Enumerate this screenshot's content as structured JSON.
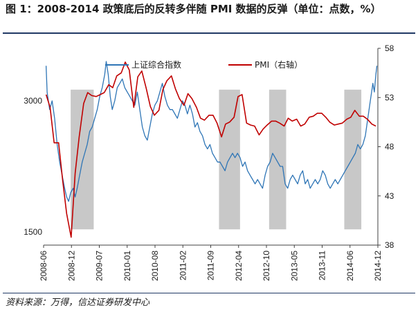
{
  "header": {
    "title": "图 1：2008-2014 政策底后的反转多伴随 PMI 数据的反弹（单位：点数，%）"
  },
  "footer": {
    "source": "资料来源：万得，信达证券研发中心"
  },
  "chart_data": {
    "type": "line",
    "title": "图 1：2008-2014 政策底后的反转多伴随 PMI 数据的反弹（单位：点数，%）",
    "x_labels": [
      "2008-06",
      "2008-12",
      "2009-07",
      "2010-01",
      "2010-08",
      "2011-02",
      "2011-09",
      "2012-04",
      "2012-10",
      "2013-05",
      "2013-11",
      "2014-06",
      "2014-12"
    ],
    "x_range": [
      2008.33,
      2015.0
    ],
    "left_axis": {
      "ticks": [
        3000,
        1500
      ],
      "range": [
        1350,
        3600
      ],
      "name": "上证综合指数"
    },
    "right_axis": {
      "ticks": [
        58,
        53,
        48,
        43,
        38
      ],
      "range": [
        38,
        58
      ],
      "name": "PMI（右轴）"
    },
    "shaded_periods": [
      {
        "start": 2008.87,
        "end": 2009.33
      },
      {
        "start": 2011.83,
        "end": 2012.25
      },
      {
        "start": 2012.83,
        "end": 2013.17
      },
      {
        "start": 2014.33,
        "end": 2014.67
      }
    ],
    "series": [
      {
        "name": "上证综合指数",
        "axis": "left",
        "color": "#2e75b6",
        "x": [
          2008.38,
          2008.4,
          2008.45,
          2008.5,
          2008.55,
          2008.6,
          2008.65,
          2008.7,
          2008.75,
          2008.79,
          2008.83,
          2008.87,
          2008.92,
          2008.96,
          2009.0,
          2009.05,
          2009.1,
          2009.15,
          2009.2,
          2009.25,
          2009.3,
          2009.35,
          2009.4,
          2009.45,
          2009.5,
          2009.55,
          2009.58,
          2009.62,
          2009.66,
          2009.7,
          2009.75,
          2009.8,
          2009.85,
          2009.9,
          2009.95,
          2010.0,
          2010.05,
          2010.1,
          2010.15,
          2010.2,
          2010.25,
          2010.3,
          2010.35,
          2010.4,
          2010.45,
          2010.5,
          2010.55,
          2010.6,
          2010.65,
          2010.7,
          2010.75,
          2010.8,
          2010.85,
          2010.9,
          2010.95,
          2011.0,
          2011.05,
          2011.1,
          2011.15,
          2011.2,
          2011.25,
          2011.3,
          2011.35,
          2011.4,
          2011.45,
          2011.5,
          2011.55,
          2011.6,
          2011.65,
          2011.7,
          2011.75,
          2011.8,
          2011.85,
          2011.9,
          2011.95,
          2012.0,
          2012.05,
          2012.1,
          2012.15,
          2012.2,
          2012.25,
          2012.3,
          2012.35,
          2012.4,
          2012.45,
          2012.5,
          2012.55,
          2012.6,
          2012.65,
          2012.7,
          2012.75,
          2012.8,
          2012.85,
          2012.9,
          2012.95,
          2013.0,
          2013.05,
          2013.1,
          2013.15,
          2013.2,
          2013.25,
          2013.3,
          2013.35,
          2013.4,
          2013.45,
          2013.5,
          2013.55,
          2013.6,
          2013.65,
          2013.7,
          2013.75,
          2013.8,
          2013.85,
          2013.9,
          2013.95,
          2014.0,
          2014.05,
          2014.1,
          2014.15,
          2014.2,
          2014.25,
          2014.3,
          2014.35,
          2014.4,
          2014.45,
          2014.5,
          2014.55,
          2014.6,
          2014.65,
          2014.7,
          2014.75,
          2014.8,
          2014.85,
          2014.9,
          2014.93,
          2014.96,
          2014.98
        ],
        "values": [
          3400,
          3100,
          2900,
          3000,
          2800,
          2500,
          2300,
          2150,
          2000,
          1900,
          1850,
          1950,
          2000,
          1900,
          2000,
          2150,
          2300,
          2400,
          2500,
          2650,
          2700,
          2800,
          2900,
          3050,
          3150,
          3300,
          3450,
          3300,
          3050,
          2900,
          3000,
          3150,
          3200,
          3250,
          3150,
          3100,
          3050,
          3000,
          2950,
          3100,
          2900,
          2700,
          2600,
          2550,
          2700,
          2850,
          2950,
          3000,
          3100,
          3200,
          3050,
          2950,
          2900,
          2900,
          2850,
          2800,
          2900,
          3000,
          2950,
          2850,
          2950,
          2850,
          2700,
          2750,
          2650,
          2600,
          2500,
          2450,
          2500,
          2400,
          2350,
          2300,
          2300,
          2250,
          2200,
          2300,
          2350,
          2400,
          2350,
          2400,
          2350,
          2250,
          2300,
          2200,
          2150,
          2100,
          2050,
          2100,
          2050,
          2000,
          2150,
          2250,
          2300,
          2400,
          2350,
          2300,
          2250,
          2250,
          2050,
          2000,
          2100,
          2150,
          2100,
          2050,
          2150,
          2200,
          2050,
          2100,
          2000,
          2050,
          2100,
          2050,
          2100,
          2200,
          2150,
          2050,
          2000,
          2050,
          2100,
          2050,
          2100,
          2150,
          2200,
          2250,
          2300,
          2350,
          2400,
          2500,
          2450,
          2500,
          2600,
          2800,
          3000,
          3200,
          3100,
          3300,
          3400
        ],
        "mark_names": {
          "line": "sh-index-line"
        }
      },
      {
        "name": "PMI（右轴）",
        "axis": "right",
        "color": "#c00000",
        "x": [
          2008.38,
          2008.46,
          2008.54,
          2008.63,
          2008.71,
          2008.79,
          2008.88,
          2008.96,
          2009.04,
          2009.13,
          2009.21,
          2009.29,
          2009.38,
          2009.46,
          2009.54,
          2009.63,
          2009.71,
          2009.79,
          2009.88,
          2009.96,
          2010.04,
          2010.13,
          2010.21,
          2010.29,
          2010.38,
          2010.46,
          2010.54,
          2010.63,
          2010.71,
          2010.79,
          2010.88,
          2010.96,
          2011.04,
          2011.13,
          2011.21,
          2011.29,
          2011.38,
          2011.46,
          2011.54,
          2011.63,
          2011.71,
          2011.79,
          2011.88,
          2011.96,
          2012.04,
          2012.13,
          2012.21,
          2012.29,
          2012.38,
          2012.46,
          2012.54,
          2012.63,
          2012.71,
          2012.79,
          2012.88,
          2012.96,
          2013.04,
          2013.13,
          2013.21,
          2013.29,
          2013.38,
          2013.46,
          2013.54,
          2013.63,
          2013.71,
          2013.79,
          2013.88,
          2013.96,
          2014.04,
          2014.13,
          2014.21,
          2014.29,
          2014.38,
          2014.46,
          2014.54,
          2014.63,
          2014.71,
          2014.79,
          2014.88,
          2014.96
        ],
        "values": [
          53.3,
          52.0,
          48.4,
          48.4,
          44.6,
          41.2,
          38.8,
          45.3,
          49.0,
          52.4,
          53.5,
          53.2,
          53.1,
          53.3,
          53.5,
          54.3,
          54.0,
          55.2,
          55.5,
          56.6,
          55.8,
          52.0,
          55.1,
          55.7,
          53.9,
          52.1,
          51.2,
          51.7,
          53.8,
          54.7,
          55.2,
          53.9,
          52.9,
          52.2,
          53.4,
          52.9,
          52.0,
          50.9,
          50.7,
          51.2,
          51.2,
          50.4,
          49.0,
          50.3,
          50.5,
          51.0,
          53.1,
          53.3,
          50.4,
          50.2,
          50.1,
          49.2,
          49.8,
          50.2,
          50.6,
          50.6,
          50.4,
          50.1,
          50.9,
          50.6,
          50.8,
          50.1,
          50.3,
          51.0,
          51.1,
          51.4,
          51.4,
          51.0,
          50.5,
          50.2,
          50.3,
          50.4,
          50.8,
          51.0,
          51.7,
          51.1,
          51.1,
          50.8,
          50.3,
          50.1
        ],
        "mark_names": {
          "line": "pmi-line"
        }
      }
    ],
    "legend": {
      "placement": "top-center",
      "entries": [
        "上证综合指数",
        "PMI（右轴）"
      ]
    }
  }
}
